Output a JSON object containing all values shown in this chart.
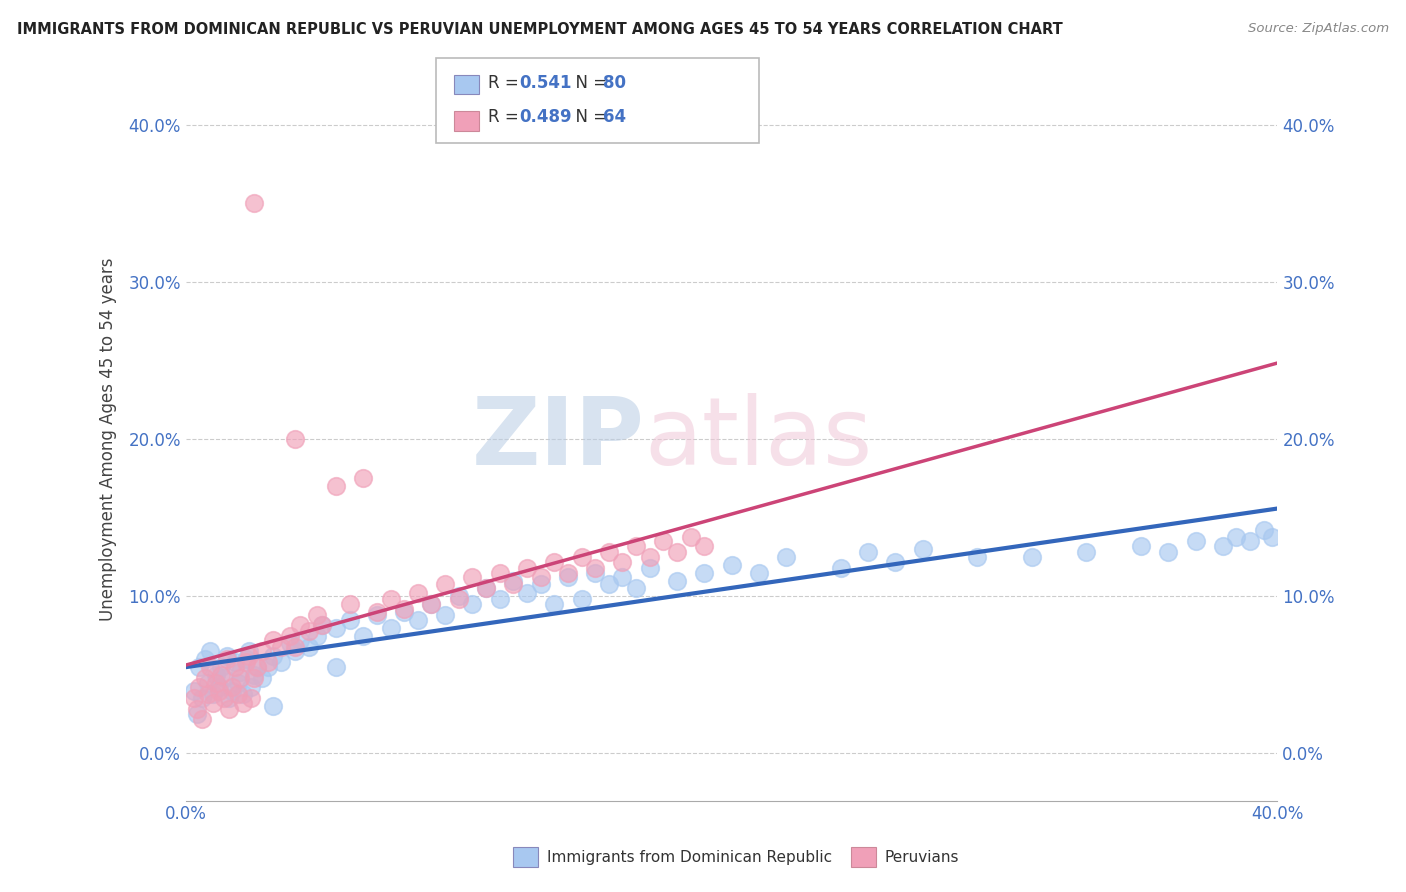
{
  "title": "IMMIGRANTS FROM DOMINICAN REPUBLIC VS PERUVIAN UNEMPLOYMENT AMONG AGES 45 TO 54 YEARS CORRELATION CHART",
  "source": "Source: ZipAtlas.com",
  "ylabel": "Unemployment Among Ages 45 to 54 years",
  "xlim": [
    0.0,
    0.4
  ],
  "ylim": [
    -0.03,
    0.43
  ],
  "ytick_vals": [
    0.0,
    0.1,
    0.2,
    0.3,
    0.4
  ],
  "xtick_vals": [
    0.0,
    0.05,
    0.1,
    0.15,
    0.2,
    0.25,
    0.3,
    0.35,
    0.4
  ],
  "blue_R": 0.541,
  "blue_N": 80,
  "pink_R": 0.489,
  "pink_N": 64,
  "blue_color": "#a8c8f0",
  "pink_color": "#f0a0b8",
  "blue_line_color": "#3366bb",
  "pink_line_color": "#cc4477",
  "watermark_zip": "ZIP",
  "watermark_atlas": "atlas",
  "background_color": "#ffffff",
  "grid_color": "#cccccc",
  "blue_scatter_x": [
    0.003,
    0.004,
    0.005,
    0.006,
    0.007,
    0.008,
    0.009,
    0.01,
    0.011,
    0.012,
    0.013,
    0.014,
    0.015,
    0.016,
    0.017,
    0.018,
    0.019,
    0.02,
    0.021,
    0.022,
    0.023,
    0.024,
    0.025,
    0.026,
    0.028,
    0.03,
    0.032,
    0.035,
    0.038,
    0.04,
    0.042,
    0.045,
    0.048,
    0.05,
    0.055,
    0.06,
    0.065,
    0.07,
    0.075,
    0.08,
    0.085,
    0.09,
    0.095,
    0.1,
    0.105,
    0.11,
    0.115,
    0.12,
    0.125,
    0.13,
    0.135,
    0.14,
    0.145,
    0.15,
    0.155,
    0.16,
    0.165,
    0.17,
    0.18,
    0.19,
    0.2,
    0.21,
    0.22,
    0.24,
    0.25,
    0.26,
    0.27,
    0.29,
    0.31,
    0.33,
    0.35,
    0.36,
    0.37,
    0.38,
    0.385,
    0.39,
    0.395,
    0.398,
    0.032,
    0.055
  ],
  "blue_scatter_y": [
    0.04,
    0.025,
    0.055,
    0.035,
    0.06,
    0.045,
    0.065,
    0.038,
    0.05,
    0.042,
    0.055,
    0.048,
    0.062,
    0.035,
    0.04,
    0.058,
    0.045,
    0.052,
    0.038,
    0.06,
    0.065,
    0.042,
    0.05,
    0.055,
    0.048,
    0.055,
    0.062,
    0.058,
    0.07,
    0.065,
    0.072,
    0.068,
    0.075,
    0.082,
    0.08,
    0.085,
    0.075,
    0.088,
    0.08,
    0.09,
    0.085,
    0.095,
    0.088,
    0.1,
    0.095,
    0.105,
    0.098,
    0.11,
    0.102,
    0.108,
    0.095,
    0.112,
    0.098,
    0.115,
    0.108,
    0.112,
    0.105,
    0.118,
    0.11,
    0.115,
    0.12,
    0.115,
    0.125,
    0.118,
    0.128,
    0.122,
    0.13,
    0.125,
    0.125,
    0.128,
    0.132,
    0.128,
    0.135,
    0.132,
    0.138,
    0.135,
    0.142,
    0.138,
    0.03,
    0.055
  ],
  "pink_scatter_x": [
    0.003,
    0.004,
    0.005,
    0.006,
    0.007,
    0.008,
    0.009,
    0.01,
    0.011,
    0.012,
    0.013,
    0.014,
    0.015,
    0.016,
    0.017,
    0.018,
    0.019,
    0.02,
    0.021,
    0.022,
    0.023,
    0.024,
    0.025,
    0.025,
    0.026,
    0.028,
    0.03,
    0.032,
    0.035,
    0.038,
    0.04,
    0.04,
    0.042,
    0.045,
    0.048,
    0.05,
    0.055,
    0.06,
    0.065,
    0.07,
    0.075,
    0.08,
    0.085,
    0.09,
    0.095,
    0.1,
    0.105,
    0.11,
    0.115,
    0.12,
    0.125,
    0.13,
    0.135,
    0.14,
    0.145,
    0.15,
    0.155,
    0.16,
    0.165,
    0.17,
    0.175,
    0.18,
    0.185,
    0.19
  ],
  "pink_scatter_y": [
    0.035,
    0.028,
    0.042,
    0.022,
    0.048,
    0.038,
    0.055,
    0.032,
    0.045,
    0.04,
    0.05,
    0.035,
    0.06,
    0.028,
    0.042,
    0.055,
    0.038,
    0.048,
    0.032,
    0.058,
    0.062,
    0.035,
    0.35,
    0.048,
    0.055,
    0.065,
    0.058,
    0.072,
    0.068,
    0.075,
    0.2,
    0.068,
    0.082,
    0.078,
    0.088,
    0.082,
    0.17,
    0.095,
    0.175,
    0.09,
    0.098,
    0.092,
    0.102,
    0.095,
    0.108,
    0.098,
    0.112,
    0.105,
    0.115,
    0.108,
    0.118,
    0.112,
    0.122,
    0.115,
    0.125,
    0.118,
    0.128,
    0.122,
    0.132,
    0.125,
    0.135,
    0.128,
    0.138,
    0.132
  ]
}
